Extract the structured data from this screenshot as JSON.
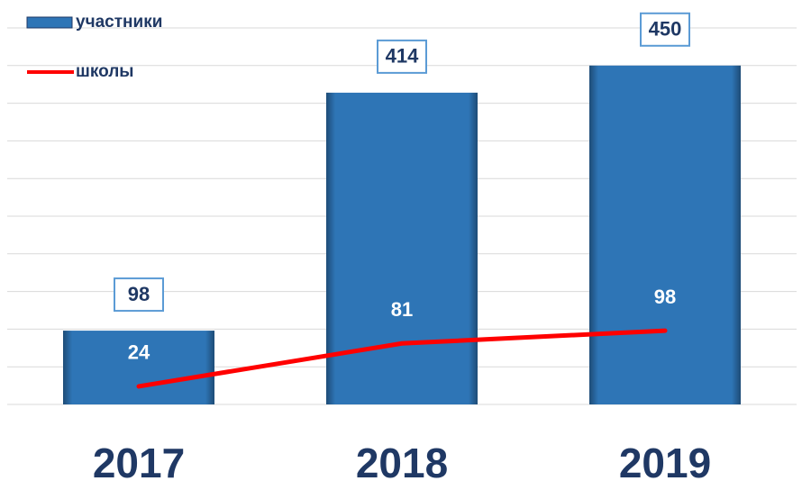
{
  "chart_data": {
    "type": "bar",
    "categories": [
      "2017",
      "2018",
      "2019"
    ],
    "series": [
      {
        "name": "участники",
        "type": "bar",
        "color": "#2e75b6",
        "values": [
          98,
          414,
          450
        ]
      },
      {
        "name": "школы",
        "type": "line",
        "color": "#ff0000",
        "values": [
          24,
          81,
          98
        ]
      }
    ],
    "ylim": [
      0,
      500
    ],
    "yticks": [
      0,
      50,
      100,
      150,
      200,
      250,
      300,
      350,
      400,
      450,
      500
    ],
    "grid": true
  }
}
